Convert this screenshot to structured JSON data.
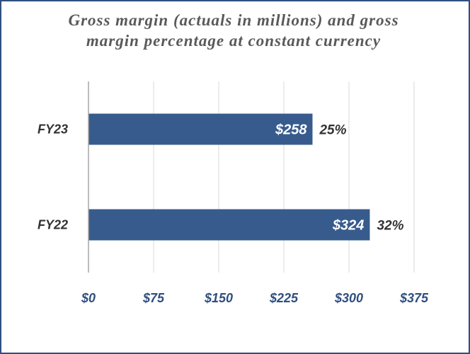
{
  "chart_data": {
    "type": "bar",
    "orientation": "horizontal",
    "title": "Gross margin (actuals in millions) and gross margin percentage at constant currency",
    "categories": [
      "FY23",
      "FY22"
    ],
    "values": [
      258,
      324
    ],
    "value_labels": [
      "$258",
      "$324"
    ],
    "percent_labels": [
      "25%",
      "32%"
    ],
    "xlim": [
      0,
      375
    ],
    "x_ticks": [
      0,
      75,
      150,
      225,
      300,
      375
    ],
    "x_tick_labels": [
      "$0",
      "$75",
      "$150",
      "$225",
      "$300",
      "$375"
    ],
    "grid": true,
    "bar_color": "#375b8c",
    "legend": "none"
  }
}
